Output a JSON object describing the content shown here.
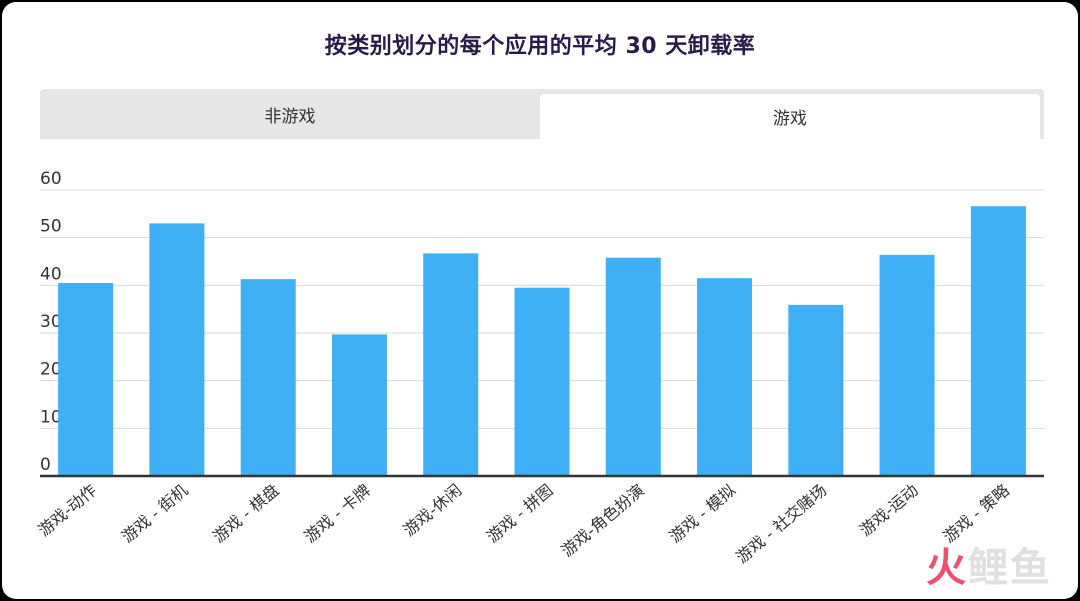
{
  "title": "按类别划分的每个应用的平均 30 天卸载率",
  "tabs": [
    {
      "label": "非游戏",
      "active": false
    },
    {
      "label": "游戏",
      "active": true
    }
  ],
  "watermark": {
    "fire": "火",
    "rest": "鲤鱼"
  },
  "colors": {
    "bar": "#3fb0f5",
    "grid": "#d9d9d9",
    "axis": "#333333",
    "title": "#2a1a4a"
  },
  "chart_data": {
    "type": "bar",
    "title": "按类别划分的每个应用的平均 30 天卸载率",
    "categories": [
      "游戏-动作",
      "游戏 - 街机",
      "游戏 - 棋盘",
      "游戏 - 卡牌",
      "游戏-休闲",
      "游戏 - 拼图",
      "游戏-角色扮演",
      "游戏 - 模拟",
      "游戏 - 社交赌场",
      "游戏-运动",
      "游戏 - 策略"
    ],
    "values": [
      40.5,
      53,
      41.3,
      29.7,
      46.7,
      39.5,
      45.8,
      41.5,
      35.9,
      46.4,
      56.6
    ],
    "yticks": [
      0,
      10,
      20,
      30,
      40,
      50,
      60
    ],
    "ylim": [
      0,
      60
    ],
    "grid": true,
    "xlabel": "",
    "ylabel": ""
  }
}
